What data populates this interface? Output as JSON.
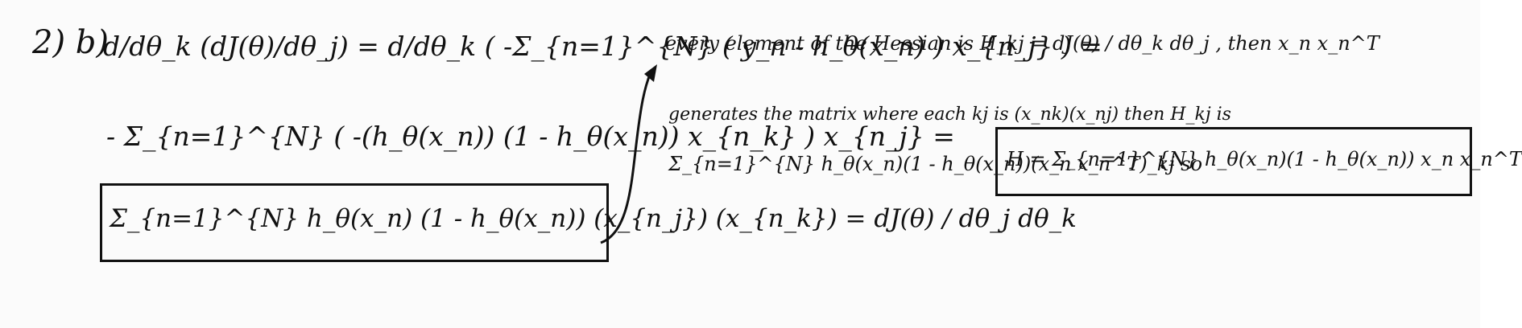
{
  "problem_label": "2) b)",
  "left": {
    "line1": "d/dθ_k (dJ(θ)/dθ_j) = d/dθ_k ( -Σ_{n=1}^{N} ( y_n - h_θ(x_n) ) x_{n_j} ) =",
    "line2": "- Σ_{n=1}^{N} ( -(h_θ(x_n)) (1 - h_θ(x_n)) x_{n_k} ) x_{n_j} =",
    "boxed": "Σ_{n=1}^{N} h_θ(x_n) (1 - h_θ(x_n)) (x_{n_j}) (x_{n_k}) = dJ(θ) / dθ_j dθ_k"
  },
  "right": {
    "line1": "every element of the Hessian is H_kj = dJ(θ) / dθ_k dθ_j , then x_n x_n^T",
    "line2": "generates the matrix where each kj is (x_nk)(x_nj) then H_kj is",
    "line3": "Σ_{n=1}^{N} h_θ(x_n)(1 - h_θ(x_n))(x_n x_n^T)_kj so",
    "boxed": "H = Σ_{n=1}^{N} h_θ(x_n)(1 - h_θ(x_n)) x_n x_n^T"
  },
  "colors": {
    "ink": "#111111",
    "paper": "#fbfbfb"
  }
}
